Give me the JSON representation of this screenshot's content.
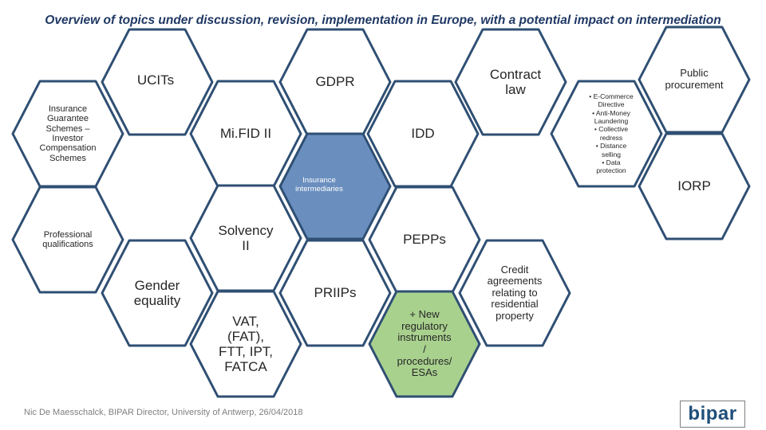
{
  "title": "Overview of topics under discussion, revision, implementation in Europe, with a potential impact on intermediation",
  "footer": "Nic De Maesschalck, BIPAR Director, University of Antwerp, 26/04/2018",
  "logo_text": "bipar",
  "colors": {
    "outline": "#2f4f73",
    "center_fill": "#6a8fbf",
    "green_fill": "#a9d18e",
    "text": "#262626",
    "title": "#1f3864"
  },
  "hexagons": [
    {
      "id": "ucits",
      "lines": [
        "UCITs"
      ]
    },
    {
      "id": "gdpr",
      "lines": [
        "GDPR"
      ]
    },
    {
      "id": "contract-law",
      "lines": [
        "Contract",
        "law"
      ]
    },
    {
      "id": "insurance-guarantee",
      "lines": [
        "Insurance",
        "Guarantee",
        "Schemes –",
        "Investor",
        "Compensation",
        "Schemes"
      ]
    },
    {
      "id": "mifid",
      "lines": [
        "Mi.FID II"
      ]
    },
    {
      "id": "idd",
      "lines": [
        "IDD"
      ]
    },
    {
      "id": "insurance-intermediaries",
      "lines": [
        "Insurance",
        "intermediaries"
      ]
    },
    {
      "id": "public-procurement",
      "lines": [
        "Public",
        "procurement"
      ]
    },
    {
      "id": "iorp",
      "lines": [
        "IORP"
      ]
    },
    {
      "id": "professional-qualifications",
      "lines": [
        "Professional",
        "qualifications"
      ]
    },
    {
      "id": "solvency",
      "lines": [
        "Solvency",
        "II"
      ]
    },
    {
      "id": "pepps",
      "lines": [
        "PEPPs"
      ]
    },
    {
      "id": "gender-equality",
      "lines": [
        "Gender",
        "equality"
      ]
    },
    {
      "id": "priips",
      "lines": [
        "PRIIPs"
      ]
    },
    {
      "id": "credit-agreements",
      "lines": [
        "Credit",
        "agreements",
        "relating to",
        "residential",
        "property"
      ]
    },
    {
      "id": "vat",
      "lines": [
        "VAT,",
        "(FAT),",
        "FTT, IPT,",
        "FATCA"
      ]
    },
    {
      "id": "new-regulatory",
      "lines": [
        "+ New",
        "regulatory",
        "instruments",
        "/",
        "procedures/",
        "ESAs"
      ]
    }
  ],
  "bullet_list": [
    "• E-Commerce",
    "Directive",
    "• Anti-Money",
    "Laundering",
    "• Collective",
    "redress",
    "• Distance",
    "selling",
    "• Data",
    "protection"
  ]
}
